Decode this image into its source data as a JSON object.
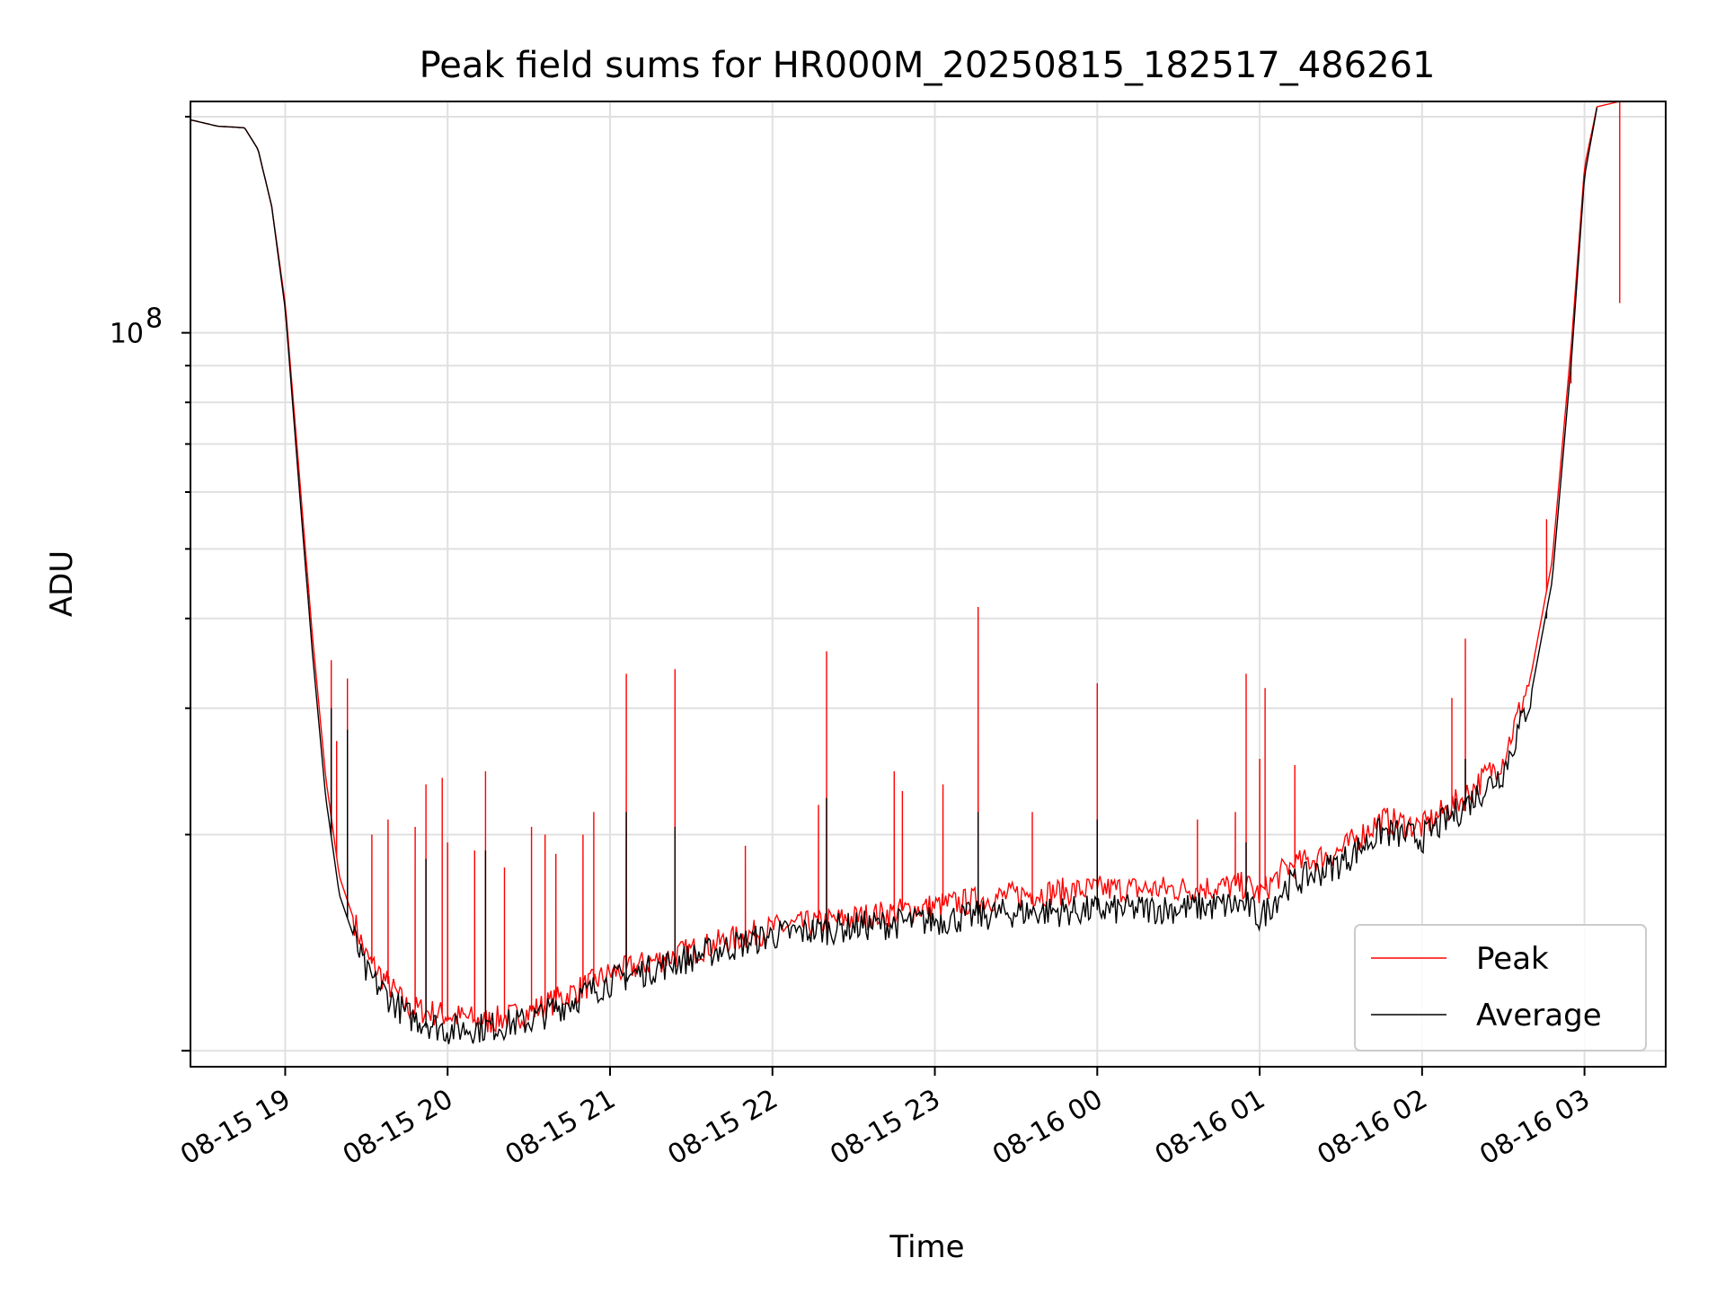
{
  "chart_data": {
    "type": "line",
    "title": "Peak field sums for HR000M_20250815_182517_486261",
    "xlabel": "Time",
    "ylabel": "ADU",
    "yscale": "log",
    "ylim": [
      9500000,
      210000000
    ],
    "xlim": [
      "08-15 18:25",
      "08-16 03:30"
    ],
    "grid": true,
    "legend_position": "bottom-right",
    "x_tick_labels": [
      "08-15 19",
      "08-15 20",
      "08-15 21",
      "08-15 22",
      "08-15 23",
      "08-16 00",
      "08-16 01",
      "08-16 02",
      "08-16 03"
    ],
    "y_tick_labels": [
      {
        "base": "10",
        "exp": "8"
      }
    ],
    "series": [
      {
        "name": "Peak",
        "color": "#ff0000",
        "baseline": [
          [
            "08-15 18:25",
            198000000
          ],
          [
            "08-15 18:35",
            194000000
          ],
          [
            "08-15 18:45",
            193000000
          ],
          [
            "08-15 18:50",
            180000000
          ],
          [
            "08-15 18:55",
            150000000
          ],
          [
            "08-15 19:00",
            110000000
          ],
          [
            "08-15 19:05",
            65000000
          ],
          [
            "08-15 19:10",
            38000000
          ],
          [
            "08-15 19:15",
            24000000
          ],
          [
            "08-15 19:20",
            17500000
          ],
          [
            "08-15 19:30",
            13500000
          ],
          [
            "08-15 19:45",
            11500000
          ],
          [
            "08-15 20:00",
            11200000
          ],
          [
            "08-15 20:15",
            11000000
          ],
          [
            "08-15 20:30",
            11300000
          ],
          [
            "08-15 20:45",
            12000000
          ],
          [
            "08-15 21:00",
            12800000
          ],
          [
            "08-15 21:30",
            13800000
          ],
          [
            "08-15 22:00",
            14800000
          ],
          [
            "08-15 22:30",
            15300000
          ],
          [
            "08-15 23:00",
            15900000
          ],
          [
            "08-15 23:30",
            16500000
          ],
          [
            "08-16 00:00",
            16800000
          ],
          [
            "08-16 00:30",
            16800000
          ],
          [
            "08-16 00:55",
            17000000
          ],
          [
            "08-16 01:00",
            16500000
          ],
          [
            "08-16 01:10",
            18000000
          ],
          [
            "08-16 01:30",
            19000000
          ],
          [
            "08-16 01:45",
            21000000
          ],
          [
            "08-16 02:00",
            20500000
          ],
          [
            "08-16 02:15",
            22500000
          ],
          [
            "08-16 02:30",
            25500000
          ],
          [
            "08-16 02:40",
            33000000
          ],
          [
            "08-16 02:48",
            48000000
          ],
          [
            "08-16 02:55",
            95000000
          ],
          [
            "08-16 03:00",
            170000000
          ],
          [
            "08-16 03:05",
            210000000
          ]
        ],
        "spikes": [
          [
            "08-15 19:17",
            35000000
          ],
          [
            "08-15 19:19",
            27000000
          ],
          [
            "08-15 19:23",
            33000000
          ],
          [
            "08-15 19:32",
            20000000
          ],
          [
            "08-15 19:38",
            21000000
          ],
          [
            "08-15 19:48",
            20500000
          ],
          [
            "08-15 19:52",
            23500000
          ],
          [
            "08-15 19:58",
            24000000
          ],
          [
            "08-15 20:00",
            19500000
          ],
          [
            "08-15 20:10",
            19000000
          ],
          [
            "08-15 20:14",
            24500000
          ],
          [
            "08-15 20:21",
            18000000
          ],
          [
            "08-15 20:31",
            20500000
          ],
          [
            "08-15 20:36",
            20000000
          ],
          [
            "08-15 20:40",
            18800000
          ],
          [
            "08-15 20:50",
            20000000
          ],
          [
            "08-15 20:54",
            21500000
          ],
          [
            "08-15 21:06",
            33500000
          ],
          [
            "08-15 21:24",
            34000000
          ],
          [
            "08-15 21:50",
            19300000
          ],
          [
            "08-15 22:17",
            22000000
          ],
          [
            "08-15 22:20",
            36000000
          ],
          [
            "08-15 22:45",
            24500000
          ],
          [
            "08-15 22:48",
            23000000
          ],
          [
            "08-15 23:03",
            23500000
          ],
          [
            "08-15 23:16",
            41500000
          ],
          [
            "08-15 23:36",
            21500000
          ],
          [
            "08-16 00:00",
            32500000
          ],
          [
            "08-16 00:37",
            21000000
          ],
          [
            "08-16 00:51",
            21500000
          ],
          [
            "08-16 00:55",
            33500000
          ],
          [
            "08-16 01:00",
            25500000
          ],
          [
            "08-16 01:02",
            32000000
          ],
          [
            "08-16 01:13",
            25000000
          ],
          [
            "08-16 02:11",
            31000000
          ],
          [
            "08-16 02:16",
            37500000
          ],
          [
            "08-16 02:46",
            55000000
          ],
          [
            "08-16 03:13",
            110000000
          ],
          [
            "08-16 02:55",
            85000000
          ]
        ]
      },
      {
        "name": "Average",
        "color": "#000000",
        "baseline": [
          [
            "08-15 18:25",
            198000000
          ],
          [
            "08-15 18:35",
            194000000
          ],
          [
            "08-15 18:45",
            193000000
          ],
          [
            "08-15 18:50",
            180000000
          ],
          [
            "08-15 18:55",
            150000000
          ],
          [
            "08-15 19:00",
            108000000
          ],
          [
            "08-15 19:05",
            62000000
          ],
          [
            "08-15 19:10",
            36000000
          ],
          [
            "08-15 19:15",
            22500000
          ],
          [
            "08-15 19:20",
            16500000
          ],
          [
            "08-15 19:30",
            12800000
          ],
          [
            "08-15 19:45",
            11200000
          ],
          [
            "08-15 20:00",
            10700000
          ],
          [
            "08-15 20:15",
            10800000
          ],
          [
            "08-15 20:30",
            11000000
          ],
          [
            "08-15 20:45",
            11700000
          ],
          [
            "08-15 21:00",
            12500000
          ],
          [
            "08-15 21:30",
            13500000
          ],
          [
            "08-15 22:00",
            14500000
          ],
          [
            "08-15 22:30",
            14900000
          ],
          [
            "08-15 23:00",
            15200000
          ],
          [
            "08-15 23:30",
            15600000
          ],
          [
            "08-16 00:00",
            15700000
          ],
          [
            "08-16 00:30",
            15800000
          ],
          [
            "08-16 00:55",
            16000000
          ],
          [
            "08-16 01:00",
            15300000
          ],
          [
            "08-16 01:10",
            17000000
          ],
          [
            "08-16 01:30",
            18300000
          ],
          [
            "08-16 01:45",
            20200000
          ],
          [
            "08-16 02:00",
            19800000
          ],
          [
            "08-16 02:15",
            21800000
          ],
          [
            "08-16 02:30",
            24500000
          ],
          [
            "08-16 02:40",
            31000000
          ],
          [
            "08-16 02:48",
            45000000
          ],
          [
            "08-16 02:55",
            90000000
          ],
          [
            "08-16 03:00",
            165000000
          ],
          [
            "08-16 03:05",
            210000000
          ]
        ],
        "spikes": [
          [
            "08-15 19:17",
            30000000
          ],
          [
            "08-15 19:23",
            28000000
          ],
          [
            "08-15 19:52",
            18500000
          ],
          [
            "08-15 20:14",
            19000000
          ],
          [
            "08-15 21:06",
            21500000
          ],
          [
            "08-15 21:24",
            20500000
          ],
          [
            "08-15 22:20",
            22500000
          ],
          [
            "08-15 23:16",
            21500000
          ],
          [
            "08-16 00:00",
            21000000
          ],
          [
            "08-16 00:55",
            19500000
          ],
          [
            "08-16 02:16",
            25500000
          ],
          [
            "08-16 02:46",
            40000000
          ]
        ]
      }
    ]
  }
}
